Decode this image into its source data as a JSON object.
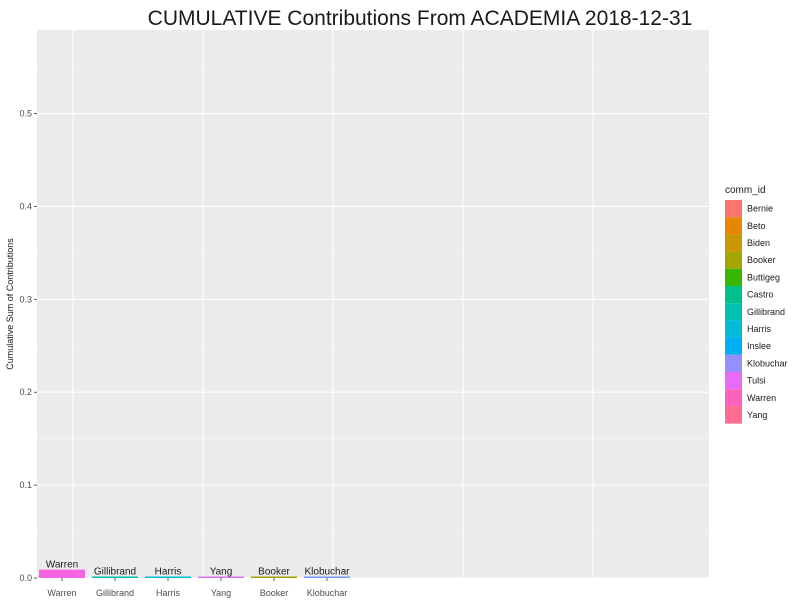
{
  "chart_data": {
    "type": "bar",
    "title": "CUMULATIVE Contributions From  ACADEMIA  2018-12-31",
    "xlabel": "",
    "ylabel": "Cumulative Sum of Contributions",
    "ylim": [
      0,
      0.59
    ],
    "yticks": [
      "0.0",
      "0.1",
      "0.2",
      "0.3",
      "0.4",
      "0.5"
    ],
    "grid": true,
    "orientation": "vertical",
    "categories": [
      "Warren",
      "Gillibrand",
      "Harris",
      "Yang",
      "Booker",
      "Klobuchar"
    ],
    "values": [
      0.009,
      0.0008,
      0.0006,
      0.0004,
      0.0002,
      0.0002
    ],
    "bar_colors": [
      "#F564E3",
      "#00C0AF",
      "#00BCD8",
      "#DC71FA",
      "#A3A500",
      "#7997FF"
    ],
    "legend": {
      "title": "comm_id",
      "placement": "right",
      "items": [
        {
          "label": "Bernie",
          "color": "#F8766D"
        },
        {
          "label": "Beto",
          "color": "#E58700"
        },
        {
          "label": "Biden",
          "color": "#C99800"
        },
        {
          "label": "Booker",
          "color": "#A3A500"
        },
        {
          "label": "Buttigeg",
          "color": "#39B600"
        },
        {
          "label": "Castro",
          "color": "#00C08B"
        },
        {
          "label": "Gillibrand",
          "color": "#00C0AF"
        },
        {
          "label": "Harris",
          "color": "#00BCD8"
        },
        {
          "label": "Inslee",
          "color": "#00B0F6"
        },
        {
          "label": "Klobuchar",
          "color": "#9590FF"
        },
        {
          "label": "Tulsi",
          "color": "#E76BF3"
        },
        {
          "label": "Warren",
          "color": "#FF62BC"
        },
        {
          "label": "Yang",
          "color": "#FF6C91"
        }
      ]
    }
  }
}
